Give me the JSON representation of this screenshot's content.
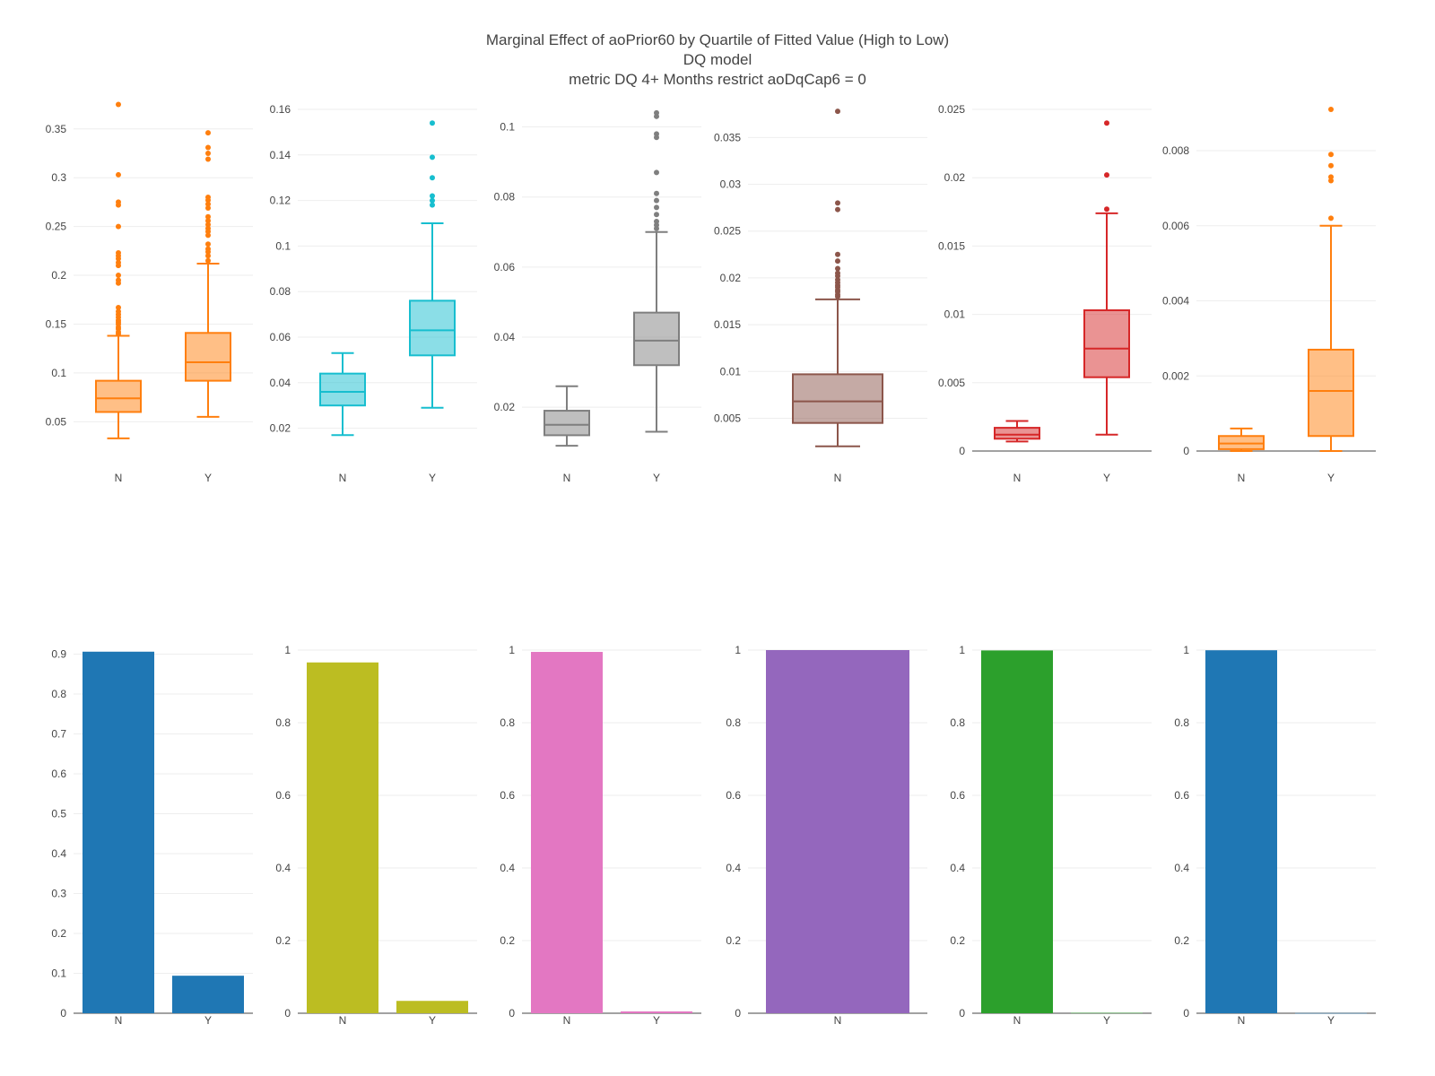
{
  "title_lines": [
    "Marginal Effect of aoPrior60 by Quartile of Fitted Value (High to Low)",
    "DQ model",
    "metric DQ 4+ Months restrict aoDqCap6 = 0"
  ],
  "chart_data": [
    {
      "type": "box",
      "row": 1,
      "panel": 1,
      "color": "#ff7f0e",
      "ylim": [
        0.02,
        0.37
      ],
      "yticks": [
        0.05,
        0.1,
        0.15,
        0.2,
        0.25,
        0.3,
        0.35
      ],
      "ytick_labels": [
        "0.05",
        "0.1",
        "0.15",
        "0.2",
        "0.25",
        "0.3",
        "0.35"
      ],
      "categories": [
        "N",
        "Y"
      ],
      "boxes": [
        {
          "category": "N",
          "min": 0.033,
          "q1": 0.06,
          "median": 0.074,
          "q3": 0.092,
          "max": 0.138,
          "outliers": [
            0.375,
            0.303,
            0.275,
            0.272,
            0.25,
            0.223,
            0.22,
            0.217,
            0.213,
            0.21,
            0.2,
            0.195,
            0.192,
            0.167,
            0.163,
            0.16,
            0.157,
            0.154,
            0.152,
            0.15,
            0.147,
            0.145,
            0.142,
            0.14
          ]
        },
        {
          "category": "Y",
          "min": 0.055,
          "q1": 0.092,
          "median": 0.111,
          "q3": 0.141,
          "max": 0.212,
          "outliers": [
            0.346,
            0.331,
            0.325,
            0.319,
            0.28,
            0.277,
            0.273,
            0.269,
            0.26,
            0.256,
            0.252,
            0.248,
            0.245,
            0.241,
            0.232,
            0.227,
            0.224,
            0.22,
            0.215
          ]
        }
      ]
    },
    {
      "type": "box",
      "row": 1,
      "panel": 2,
      "color": "#17becf",
      "ylim": [
        0.01,
        0.16
      ],
      "yticks": [
        0.02,
        0.04,
        0.06,
        0.08,
        0.1,
        0.12,
        0.14,
        0.16
      ],
      "ytick_labels": [
        "0.02",
        "0.04",
        "0.06",
        "0.08",
        "0.1",
        "0.12",
        "0.14",
        "0.16"
      ],
      "categories": [
        "N",
        "Y"
      ],
      "boxes": [
        {
          "category": "N",
          "min": 0.017,
          "q1": 0.03,
          "median": 0.036,
          "q3": 0.044,
          "max": 0.053,
          "outliers": []
        },
        {
          "category": "Y",
          "min": 0.029,
          "q1": 0.052,
          "median": 0.063,
          "q3": 0.076,
          "max": 0.11,
          "outliers": [
            0.154,
            0.139,
            0.13,
            0.122,
            0.12,
            0.118
          ]
        }
      ]
    },
    {
      "type": "box",
      "row": 1,
      "panel": 3,
      "color": "#7f7f7f",
      "ylim": [
        0.0075,
        0.105
      ],
      "yticks": [
        0.02,
        0.04,
        0.06,
        0.08,
        0.1
      ],
      "ytick_labels": [
        "0.02",
        "0.04",
        "0.06",
        "0.08",
        "0.1"
      ],
      "categories": [
        "N",
        "Y"
      ],
      "boxes": [
        {
          "category": "N",
          "min": 0.009,
          "q1": 0.012,
          "median": 0.015,
          "q3": 0.019,
          "max": 0.026,
          "outliers": []
        },
        {
          "category": "Y",
          "min": 0.013,
          "q1": 0.032,
          "median": 0.039,
          "q3": 0.047,
          "max": 0.07,
          "outliers": [
            0.104,
            0.103,
            0.098,
            0.097,
            0.087,
            0.081,
            0.079,
            0.077,
            0.075,
            0.073,
            0.072,
            0.071
          ]
        }
      ]
    },
    {
      "type": "box",
      "row": 1,
      "panel": 4,
      "color": "#8c564b",
      "ylim": [
        0.0015,
        0.038
      ],
      "yticks": [
        0.005,
        0.01,
        0.015,
        0.02,
        0.025,
        0.03,
        0.035
      ],
      "ytick_labels": [
        "0.005",
        "0.01",
        "0.015",
        "0.02",
        "0.025",
        "0.03",
        "0.035"
      ],
      "categories": [
        "N"
      ],
      "boxes": [
        {
          "category": "N",
          "min": 0.002,
          "q1": 0.0045,
          "median": 0.0068,
          "q3": 0.0097,
          "max": 0.0177,
          "outliers": [
            0.0378,
            0.028,
            0.0273,
            0.0225,
            0.0218,
            0.021,
            0.0205,
            0.0202,
            0.0198,
            0.0195,
            0.0192,
            0.019,
            0.0187,
            0.0185,
            0.0182,
            0.018
          ]
        }
      ]
    },
    {
      "type": "box",
      "row": 1,
      "panel": 5,
      "color": "#d62728",
      "ylim": [
        0,
        0.025
      ],
      "yticks": [
        0,
        0.005,
        0.01,
        0.015,
        0.02,
        0.025
      ],
      "ytick_labels": [
        "0",
        "0.005",
        "0.01",
        "0.015",
        "0.02",
        "0.025"
      ],
      "zeroline": true,
      "categories": [
        "N",
        "Y"
      ],
      "boxes": [
        {
          "category": "N",
          "min": 0.0007,
          "q1": 0.0009,
          "median": 0.0012,
          "q3": 0.0017,
          "max": 0.0022,
          "outliers": []
        },
        {
          "category": "Y",
          "min": 0.0012,
          "q1": 0.0054,
          "median": 0.0075,
          "q3": 0.0103,
          "max": 0.0174,
          "outliers": [
            0.024,
            0.0202,
            0.0177
          ]
        }
      ]
    },
    {
      "type": "box",
      "row": 1,
      "panel": 6,
      "color": "#ff7f0e",
      "ylim": [
        0,
        0.0091
      ],
      "yticks": [
        0,
        0.002,
        0.004,
        0.006,
        0.008
      ],
      "ytick_labels": [
        "0",
        "0.002",
        "0.004",
        "0.006",
        "0.008"
      ],
      "zeroline": true,
      "categories": [
        "N",
        "Y"
      ],
      "boxes": [
        {
          "category": "N",
          "min": 0.0,
          "q1": 5e-05,
          "median": 0.0002,
          "q3": 0.0004,
          "max": 0.0006,
          "outliers": []
        },
        {
          "category": "Y",
          "min": 0.0,
          "q1": 0.0004,
          "median": 0.0016,
          "q3": 0.0027,
          "max": 0.006,
          "outliers": [
            0.0091,
            0.0079,
            0.0076,
            0.0073,
            0.0072,
            0.0062
          ]
        }
      ]
    },
    {
      "type": "bar",
      "row": 2,
      "panel": 1,
      "color": "#1f77b4",
      "ylim": [
        0,
        0.91
      ],
      "yticks": [
        0,
        0.1,
        0.2,
        0.3,
        0.4,
        0.5,
        0.6,
        0.7,
        0.8,
        0.9
      ],
      "ytick_labels": [
        "0",
        "0.1",
        "0.2",
        "0.3",
        "0.4",
        "0.5",
        "0.6",
        "0.7",
        "0.8",
        "0.9"
      ],
      "categories": [
        "N",
        "Y"
      ],
      "values": [
        0.906,
        0.094
      ]
    },
    {
      "type": "bar",
      "row": 2,
      "panel": 2,
      "color": "#bcbd22",
      "ylim": [
        0,
        1.0
      ],
      "yticks": [
        0,
        0.2,
        0.4,
        0.6,
        0.8,
        1
      ],
      "ytick_labels": [
        "0",
        "0.2",
        "0.4",
        "0.6",
        "0.8",
        "1"
      ],
      "categories": [
        "N",
        "Y"
      ],
      "values": [
        0.966,
        0.034
      ]
    },
    {
      "type": "bar",
      "row": 2,
      "panel": 3,
      "color": "#e377c2",
      "ylim": [
        0,
        1.0
      ],
      "yticks": [
        0,
        0.2,
        0.4,
        0.6,
        0.8,
        1
      ],
      "ytick_labels": [
        "0",
        "0.2",
        "0.4",
        "0.6",
        "0.8",
        "1"
      ],
      "categories": [
        "N",
        "Y"
      ],
      "values": [
        0.995,
        0.005
      ]
    },
    {
      "type": "bar",
      "row": 2,
      "panel": 4,
      "color": "#9467bd",
      "ylim": [
        0,
        1.0
      ],
      "yticks": [
        0,
        0.2,
        0.4,
        0.6,
        0.8,
        1
      ],
      "ytick_labels": [
        "0",
        "0.2",
        "0.4",
        "0.6",
        "0.8",
        "1"
      ],
      "categories": [
        "N"
      ],
      "values": [
        1.0
      ]
    },
    {
      "type": "bar",
      "row": 2,
      "panel": 5,
      "color": "#2ca02c",
      "ylim": [
        0,
        1.0
      ],
      "yticks": [
        0,
        0.2,
        0.4,
        0.6,
        0.8,
        1
      ],
      "ytick_labels": [
        "0",
        "0.2",
        "0.4",
        "0.6",
        "0.8",
        "1"
      ],
      "categories": [
        "N",
        "Y"
      ],
      "values": [
        0.999,
        0.001
      ]
    },
    {
      "type": "bar",
      "row": 2,
      "panel": 6,
      "color": "#1f77b4",
      "ylim": [
        0,
        1.0
      ],
      "yticks": [
        0,
        0.2,
        0.4,
        0.6,
        0.8,
        1
      ],
      "ytick_labels": [
        "0",
        "0.2",
        "0.4",
        "0.6",
        "0.8",
        "1"
      ],
      "categories": [
        "N",
        "Y"
      ],
      "values": [
        0.9995,
        0.0005
      ]
    }
  ]
}
